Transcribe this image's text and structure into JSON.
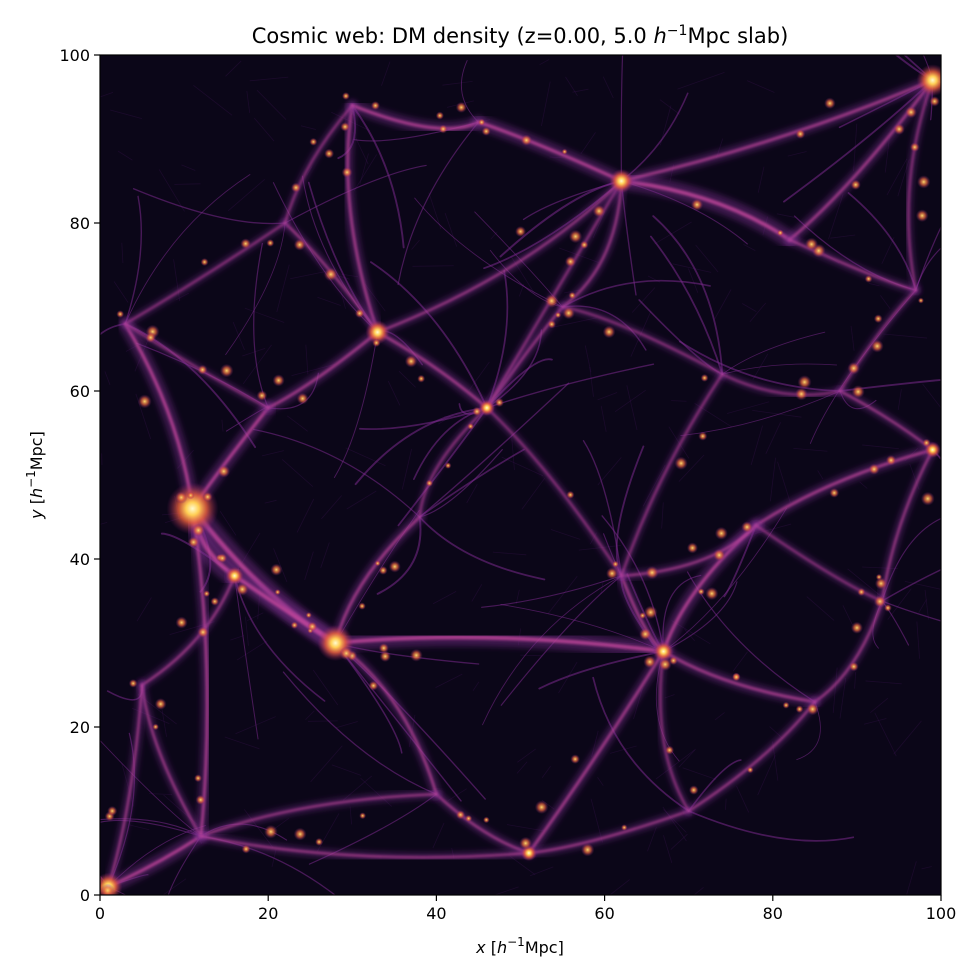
{
  "figure": {
    "title_parts": {
      "pre": "Cosmic web: DM density (z=0.00, 5.0 ",
      "h": "h",
      "sup": "−1",
      "post": "Mpc slab)"
    },
    "xlabel_parts": {
      "var": "x",
      "open": " [",
      "h": "h",
      "sup": "−1",
      "post": "Mpc]"
    },
    "ylabel_parts": {
      "var": "y",
      "open": " [",
      "h": "h",
      "sup": "−1",
      "post": "Mpc]"
    },
    "x_ticks": [
      "0",
      "20",
      "40",
      "60",
      "80",
      "100"
    ],
    "y_ticks": [
      "0",
      "20",
      "40",
      "60",
      "80",
      "100"
    ],
    "xlim": [
      0,
      100
    ],
    "ylim": [
      0,
      100
    ],
    "colormap": "inferno",
    "colors": {
      "background": "#0b0618",
      "filament": "#7a2a8c",
      "bright_filament": "#c0449a",
      "halo": "#ffbf3a"
    }
  }
}
